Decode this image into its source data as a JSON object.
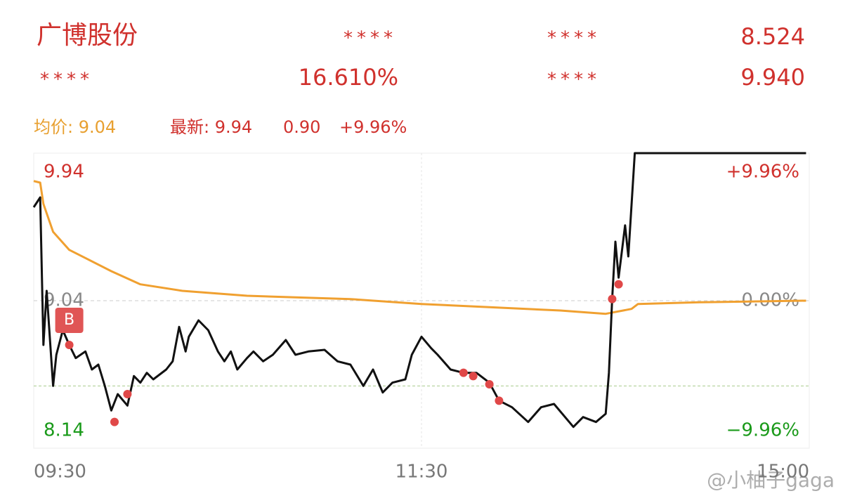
{
  "header": {
    "name": "广博股份",
    "rows": [
      [
        "****",
        "8.524"
      ],
      [
        "****",
        "16.610%",
        "****",
        "9.940"
      ]
    ],
    "row0_mask": "****"
  },
  "info": {
    "avg": "均价: 9.04",
    "latest": "最新: 9.94",
    "change": "0.90",
    "change_pct": "+9.96%"
  },
  "watermark": "@小柚子gaga",
  "chart_data": {
    "type": "line",
    "xlim": [
      0,
      240
    ],
    "xticks": [
      {
        "value": 0,
        "label": "09:30"
      },
      {
        "value": 120,
        "label": "11:30"
      },
      {
        "value": 240,
        "label": "15:00"
      }
    ],
    "ylim": [
      8.14,
      9.94
    ],
    "yticks": [
      8.14,
      9.04,
      9.94
    ],
    "y2lim": [
      -9.96,
      9.96
    ],
    "y2ticks": [
      {
        "value": -9.96,
        "label": "−9.96%"
      },
      {
        "value": 0,
        "label": "0.00%"
      },
      {
        "value": 9.96,
        "label": "+9.96%"
      }
    ],
    "up_color": "#d0312d",
    "down_color": "#1a9a1a",
    "flat_color": "#888888",
    "series": [
      {
        "color": "#111111",
        "x": [
          0,
          2,
          3,
          4,
          6,
          7,
          9,
          11,
          13,
          16,
          18,
          20,
          22,
          24,
          26,
          29,
          31,
          33,
          35,
          37,
          41,
          43,
          45,
          47,
          48,
          51,
          54,
          57,
          59,
          61,
          63,
          66,
          68,
          71,
          74,
          78,
          81,
          85,
          90,
          94,
          98,
          102,
          105,
          108,
          111,
          115,
          117,
          120,
          123,
          125,
          129,
          133,
          137,
          141,
          144,
          148,
          153,
          157,
          161,
          167,
          170,
          174,
          177,
          178,
          179,
          180,
          181,
          183,
          184,
          186,
          239
        ],
        "values": [
          9.61,
          9.67,
          8.77,
          9.1,
          8.52,
          8.71,
          8.86,
          8.77,
          8.69,
          8.73,
          8.62,
          8.65,
          8.52,
          8.37,
          8.47,
          8.4,
          8.58,
          8.54,
          8.6,
          8.56,
          8.62,
          8.67,
          8.88,
          8.73,
          8.82,
          8.92,
          8.86,
          8.73,
          8.67,
          8.73,
          8.62,
          8.69,
          8.73,
          8.67,
          8.71,
          8.8,
          8.71,
          8.73,
          8.74,
          8.67,
          8.65,
          8.52,
          8.62,
          8.48,
          8.54,
          8.56,
          8.71,
          8.82,
          8.75,
          8.71,
          8.62,
          8.6,
          8.6,
          8.54,
          8.43,
          8.39,
          8.3,
          8.39,
          8.41,
          8.27,
          8.33,
          8.3,
          8.35,
          8.6,
          9.05,
          9.4,
          9.18,
          9.5,
          9.31,
          9.94,
          9.94
        ]
      },
      {
        "color": "#f0a030",
        "x": [
          0,
          2,
          3,
          6,
          11,
          16,
          24,
          33,
          46,
          66,
          98,
          120,
          141,
          163,
          177,
          185,
          187,
          206,
          239
        ],
        "values": [
          9.77,
          9.76,
          9.63,
          9.46,
          9.35,
          9.3,
          9.22,
          9.14,
          9.1,
          9.07,
          9.05,
          9.02,
          9.0,
          8.98,
          8.96,
          8.99,
          9.02,
          9.03,
          9.04
        ]
      }
    ],
    "trade_points": {
      "color": "#e04848",
      "x": [
        11,
        25,
        29,
        133,
        136,
        141,
        144,
        179,
        181
      ],
      "values": [
        8.77,
        8.3,
        8.47,
        8.6,
        8.58,
        8.53,
        8.43,
        9.05,
        9.14
      ]
    },
    "annotation": "B",
    "reference_line": {
      "value": 8.52,
      "color": "#a8cc8c"
    }
  }
}
